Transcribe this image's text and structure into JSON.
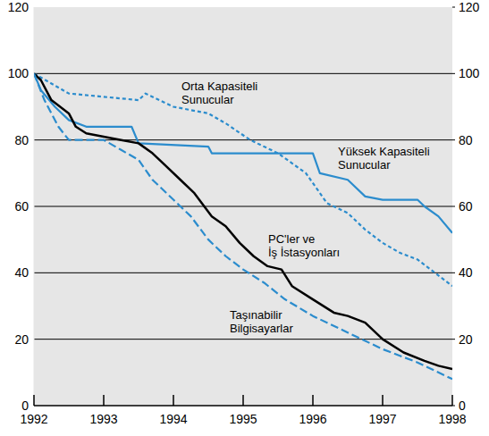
{
  "chart_data": {
    "type": "line",
    "xlim": [
      1992,
      1998
    ],
    "xticks": [
      1992,
      1993,
      1994,
      1995,
      1996,
      1997,
      1998
    ],
    "ylim": [
      0,
      120
    ],
    "yticks": [
      0,
      20,
      40,
      60,
      80,
      100,
      120
    ],
    "y2lim": [
      0,
      120
    ],
    "y2ticks": [
      0,
      20,
      40,
      60,
      80,
      100,
      120
    ],
    "grid": true,
    "series": [
      {
        "name": "Orta Kapasiteli\nSunucular",
        "color": "#2b8ccd",
        "line_style": "dotted",
        "x": [
          1992,
          1992.25,
          1992.5,
          1993,
          1993.5,
          1993.6,
          1994,
          1994.5,
          1994.75,
          1995.1,
          1995.5,
          1995.9,
          1996.2,
          1996.5,
          1996.75,
          1997,
          1997.25,
          1997.5,
          1997.75,
          1998
        ],
        "values": [
          100,
          97,
          94,
          93,
          92,
          94,
          90,
          88,
          85,
          80,
          76,
          70,
          61,
          58,
          53,
          49,
          46,
          44,
          40,
          36
        ]
      },
      {
        "name": "Yüksek Kapasiteli\nSunucular",
        "color": "#2b8ccd",
        "line_style": "solid",
        "x": [
          1992,
          1992.1,
          1992.3,
          1992.5,
          1992.75,
          1993,
          1993.4,
          1993.5,
          1994.5,
          1994.55,
          1996,
          1996.1,
          1996.5,
          1996.75,
          1997,
          1997.5,
          1997.6,
          1997.8,
          1998
        ],
        "values": [
          100,
          95,
          90,
          86,
          84,
          84,
          84,
          79,
          78,
          76,
          76,
          70,
          68,
          63,
          62,
          62,
          60,
          57,
          52
        ]
      },
      {
        "name": "PC'ler ve\nİş İstasyonları",
        "color": "#000000",
        "line_style": "solid",
        "x": [
          1992,
          1992.1,
          1992.25,
          1992.5,
          1992.6,
          1992.75,
          1993,
          1993.25,
          1993.5,
          1993.7,
          1993.85,
          1994.1,
          1994.3,
          1994.55,
          1994.75,
          1994.95,
          1995.15,
          1995.35,
          1995.55,
          1995.7,
          1996,
          1996.3,
          1996.5,
          1996.75,
          1997,
          1997.3,
          1997.6,
          1997.8,
          1998
        ],
        "values": [
          100,
          98,
          92,
          88,
          84,
          82,
          81,
          80,
          79,
          76,
          73,
          68,
          64,
          57,
          54,
          49,
          45,
          42,
          41,
          36,
          32,
          28,
          27,
          25,
          20,
          16,
          13.5,
          12,
          11
        ]
      },
      {
        "name": "Taşınabilir\nBilgisayarlar",
        "color": "#2b8ccd",
        "line_style": "dashed",
        "x": [
          1992,
          1992.15,
          1992.35,
          1992.5,
          1993,
          1993.25,
          1993.5,
          1993.7,
          1994,
          1994.25,
          1994.5,
          1994.75,
          1995,
          1995.3,
          1995.6,
          1996,
          1996.5,
          1997,
          1997.5,
          1998
        ],
        "values": [
          100,
          92,
          84,
          80,
          80,
          77,
          74,
          68,
          62,
          57,
          50,
          45,
          41,
          37,
          32,
          27,
          22,
          17,
          13,
          8
        ]
      }
    ]
  }
}
